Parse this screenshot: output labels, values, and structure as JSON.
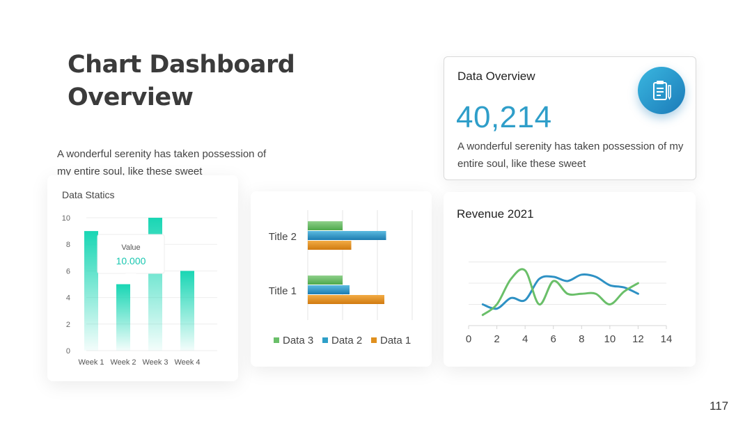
{
  "header": {
    "title_line1": "Chart Dashboard",
    "title_line2": "Overview",
    "description": "A wonderful serenity has taken possession of my entire soul, like these sweet"
  },
  "overview": {
    "title": "Data Overview",
    "value": "40,214",
    "description": "A wonderful serenity has taken possession of my entire soul, like these sweet",
    "icon": "clipboard-icon",
    "accent_color": "#2f9ec9"
  },
  "page_number": "117",
  "chart_data": [
    {
      "type": "bar",
      "title": "Data Statics",
      "categories": [
        "Week 1",
        "Week 2",
        "Week 3",
        "Week 4"
      ],
      "values": [
        9,
        5,
        10,
        6
      ],
      "ylim": [
        0,
        10
      ],
      "yticks": [
        "0",
        "2",
        "4",
        "6",
        "8",
        "10"
      ],
      "tooltip": {
        "label": "Value",
        "value": "10.000"
      },
      "color": "#19d6b4"
    },
    {
      "type": "bar",
      "orientation": "horizontal",
      "categories": [
        "Title 2",
        "Title 1"
      ],
      "series": [
        {
          "name": "Data 3",
          "values": [
            1.0,
            1.0
          ],
          "color": "#6abf69"
        },
        {
          "name": "Data 2",
          "values": [
            2.25,
            1.2
          ],
          "color": "#2e9fc8"
        },
        {
          "name": "Data 1",
          "values": [
            1.25,
            2.2
          ],
          "color": "#e0901e"
        }
      ],
      "xlim": [
        0,
        3
      ],
      "legend": "bottom"
    },
    {
      "type": "line",
      "title": "Revenue 2021",
      "xticks": [
        "0",
        "2",
        "4",
        "6",
        "8",
        "10",
        "12",
        "14"
      ],
      "xlim": [
        0,
        14
      ],
      "ylim": [
        0,
        4
      ],
      "series": [
        {
          "x": [
            1,
            2,
            3,
            4,
            5,
            6,
            7,
            8,
            9,
            10,
            11,
            12
          ],
          "y": [
            1.0,
            0.8,
            1.3,
            1.2,
            2.2,
            2.3,
            2.1,
            2.4,
            2.3,
            1.9,
            1.8,
            1.5
          ],
          "color": "#2e91c4"
        },
        {
          "x": [
            1,
            2,
            3,
            4,
            5,
            6,
            7,
            8,
            9,
            10,
            11,
            12
          ],
          "y": [
            0.5,
            1.0,
            2.2,
            2.6,
            1.0,
            2.1,
            1.5,
            1.5,
            1.5,
            1.0,
            1.6,
            2.0
          ],
          "color": "#6abf69"
        }
      ],
      "grid": true
    }
  ]
}
